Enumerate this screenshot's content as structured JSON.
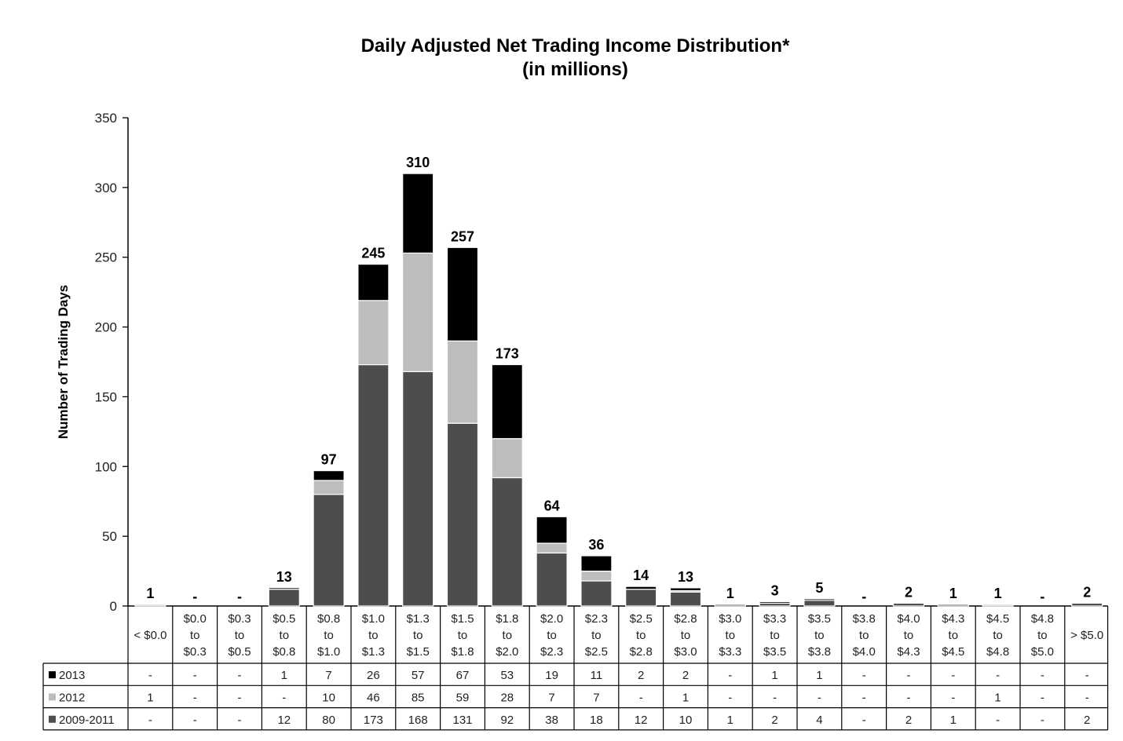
{
  "chart_data": {
    "type": "bar",
    "stacked": true,
    "title": "Daily Adjusted Net Trading Income Distribution*",
    "subtitle": "(in millions)",
    "xlabel": "",
    "ylabel": "Number of Trading Days",
    "ylim": [
      0,
      350
    ],
    "yticks": [
      "0",
      "50",
      "100",
      "150",
      "200",
      "250",
      "300",
      "350"
    ],
    "grid": false,
    "legend": "data table below chart",
    "categories": [
      "< $0.0",
      "$0.0 to $0.3",
      "$0.3 to $0.5",
      "$0.5 to $0.8",
      "$0.8 to $1.0",
      "$1.0 to $1.3",
      "$1.3 to $1.5",
      "$1.5 to $1.8",
      "$1.8 to $2.0",
      "$2.0 to $2.3",
      "$2.3 to $2.5",
      "$2.5 to $2.8",
      "$2.8 to $3.0",
      "$3.0 to $3.3",
      "$3.3 to $3.5",
      "$3.5 to $3.8",
      "$3.8 to $4.0",
      "$4.0 to $4.3",
      "$4.3 to $4.5",
      "$4.5 to $4.8",
      "$4.8 to $5.0",
      "> $5.0"
    ],
    "category_lines": [
      [
        "< $0.0"
      ],
      [
        "$0.0",
        "to",
        "$0.3"
      ],
      [
        "$0.3",
        "to",
        "$0.5"
      ],
      [
        "$0.5",
        "to",
        "$0.8"
      ],
      [
        "$0.8",
        "to",
        "$1.0"
      ],
      [
        "$1.0",
        "to",
        "$1.3"
      ],
      [
        "$1.3",
        "to",
        "$1.5"
      ],
      [
        "$1.5",
        "to",
        "$1.8"
      ],
      [
        "$1.8",
        "to",
        "$2.0"
      ],
      [
        "$2.0",
        "to",
        "$2.3"
      ],
      [
        "$2.3",
        "to",
        "$2.5"
      ],
      [
        "$2.5",
        "to",
        "$2.8"
      ],
      [
        "$2.8",
        "to",
        "$3.0"
      ],
      [
        "$3.0",
        "to",
        "$3.3"
      ],
      [
        "$3.3",
        "to",
        "$3.5"
      ],
      [
        "$3.5",
        "to",
        "$3.8"
      ],
      [
        "$3.8",
        "to",
        "$4.0"
      ],
      [
        "$4.0",
        "to",
        "$4.3"
      ],
      [
        "$4.3",
        "to",
        "$4.5"
      ],
      [
        "$4.5",
        "to",
        "$4.8"
      ],
      [
        "$4.8",
        "to",
        "$5.0"
      ],
      [
        "> $5.0"
      ]
    ],
    "totals": [
      "1",
      "-",
      "-",
      "13",
      "97",
      "245",
      "310",
      "257",
      "173",
      "64",
      "36",
      "14",
      "13",
      "1",
      "3",
      "5",
      "-",
      "2",
      "1",
      "1",
      "-",
      "2"
    ],
    "series": [
      {
        "name": "2009-2011",
        "color": "#4d4d4d",
        "values": [
          0,
          0,
          0,
          12,
          80,
          173,
          168,
          131,
          92,
          38,
          18,
          12,
          10,
          1,
          2,
          4,
          0,
          2,
          1,
          0,
          0,
          2
        ],
        "labels": [
          "-",
          "-",
          "-",
          "12",
          "80",
          "173",
          "168",
          "131",
          "92",
          "38",
          "18",
          "12",
          "10",
          "1",
          "2",
          "4",
          "-",
          "2",
          "1",
          "-",
          "-",
          "2"
        ]
      },
      {
        "name": "2012",
        "color": "#bdbdbd",
        "values": [
          1,
          0,
          0,
          0,
          10,
          46,
          85,
          59,
          28,
          7,
          7,
          0,
          1,
          0,
          0,
          0,
          0,
          0,
          0,
          1,
          0,
          0
        ],
        "labels": [
          "1",
          "-",
          "-",
          "-",
          "10",
          "46",
          "85",
          "59",
          "28",
          "7",
          "7",
          "-",
          "1",
          "-",
          "-",
          "-",
          "-",
          "-",
          "-",
          "1",
          "-",
          "-"
        ]
      },
      {
        "name": "2013",
        "color": "#000000",
        "values": [
          0,
          0,
          0,
          1,
          7,
          26,
          57,
          67,
          53,
          19,
          11,
          2,
          2,
          0,
          1,
          1,
          0,
          0,
          0,
          0,
          0,
          0
        ],
        "labels": [
          "-",
          "-",
          "-",
          "1",
          "7",
          "26",
          "57",
          "67",
          "53",
          "19",
          "11",
          "2",
          "2",
          "-",
          "1",
          "1",
          "-",
          "-",
          "-",
          "-",
          "-",
          "-"
        ]
      }
    ]
  }
}
